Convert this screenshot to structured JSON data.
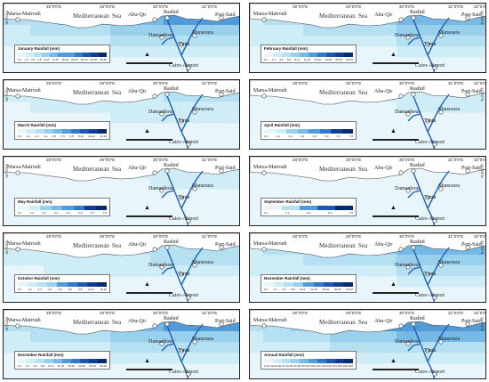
{
  "map": {
    "longitudes": [
      "28°0'0\"E",
      "29°0'0\"E",
      "30°0'0\"E",
      "31°0'0\"E",
      "32°0'0\"E"
    ],
    "latitude_label": "31°0'0\"N",
    "sea_labels": [
      "Mediterranean",
      "Sea"
    ],
    "places": {
      "matrouh": "Marsa-Matrouh",
      "abu": "Abu-Qir",
      "rashid": "Rashid",
      "port": "Port-Said",
      "daman": "Damanhour",
      "mans": "Mansoura",
      "tanta": "Tanta",
      "cairo": "Cairo-Airport"
    },
    "colors": {
      "sea": "#ffffff",
      "nile": "#1f5fb8",
      "ramp": [
        "#e8f6fb",
        "#cfedf6",
        "#b5e0f2",
        "#98d0ee",
        "#76b8e6",
        "#519bd9",
        "#3479c7",
        "#1e57ad",
        "#103d8f",
        "#0a2a6e"
      ]
    }
  },
  "panels": [
    {
      "title": "January Rainfall (mm)",
      "ticks": [
        "0-1",
        "1-3",
        "3-5",
        "5-8",
        "8-11",
        "11-15",
        "15-20",
        "20-25",
        "25-30",
        "30-35",
        "35-40"
      ],
      "intensity": 6
    },
    {
      "title": "February Rainfall (mm)",
      "ticks": [
        "0-1",
        "1-3",
        "3-5",
        "5-8",
        "8-11",
        "11-15",
        "15-20",
        "20-25",
        "25-30",
        "30-35"
      ],
      "intensity": 5
    },
    {
      "title": "March Rainfall (mm)",
      "ticks": [
        "0-1",
        "1-2",
        "2-3",
        "3-4",
        "4-5",
        "5-6",
        "6-8",
        "8-10",
        "10-12",
        "12-15"
      ],
      "intensity": 2
    },
    {
      "title": "April Rainfall (mm)",
      "ticks": [
        "0-1",
        "1-2",
        "2-3",
        "3-4",
        "4-5",
        "5-6",
        "6-7",
        "7-8"
      ],
      "intensity": 1
    },
    {
      "title": "May Rainfall (mm)",
      "ticks": [
        "0-1",
        "1-2",
        "2-3",
        "3-4",
        "4-5",
        "5-6",
        "6-7",
        "7-8"
      ],
      "intensity": 1
    },
    {
      "title": "September Rainfall (mm)",
      "ticks": [
        "0-1",
        "1-2",
        "2-3",
        "3-4",
        "4-5"
      ],
      "intensity": 0
    },
    {
      "title": "October Rainfall (mm)",
      "ticks": [
        "0-1",
        "1-2",
        "2-3",
        "3-4",
        "4-5",
        "5-6",
        "6-8",
        "8-10",
        "10-12"
      ],
      "intensity": 3
    },
    {
      "title": "November Rainfall (mm)",
      "ticks": [
        "0-1",
        "1-3",
        "3-5",
        "5-8",
        "8-11",
        "11-15",
        "15-20",
        "20-25",
        "25-30"
      ],
      "intensity": 5
    },
    {
      "title": "December Rainfall (mm)",
      "ticks": [
        "0-1",
        "1-3",
        "3-5",
        "5-8",
        "8-11",
        "11-15",
        "15-20",
        "20-25",
        "25-30",
        "30-40"
      ],
      "intensity": 6
    },
    {
      "title": "Annual Rainfall (mm)",
      "ticks": [
        "0-10",
        "10-20",
        "20-40",
        "40-60",
        "60-80",
        "80-100",
        "100-120",
        "120-150",
        "150-180",
        "180-200"
      ],
      "intensity": 7
    }
  ]
}
